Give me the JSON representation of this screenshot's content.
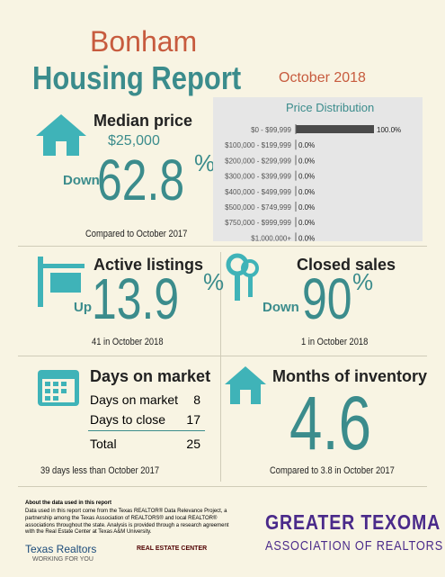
{
  "header": {
    "city": "Bonham",
    "title": "Housing Report",
    "date": "October 2018"
  },
  "median": {
    "label": "Median price",
    "value": "$25,000",
    "direction": "Down",
    "change": "62.8",
    "unit": "%",
    "compare": "Compared to October 2017"
  },
  "price_distribution": {
    "title": "Price Distribution",
    "categories": [
      "$0 - $99,999",
      "$100,000 - $199,999",
      "$200,000 - $299,999",
      "$300,000 - $399,999",
      "$400,000 - $499,999",
      "$500,000 - $749,999",
      "$750,000 - $999,999",
      "$1,000,000+"
    ],
    "values": [
      100,
      0,
      0,
      0,
      0,
      0,
      0,
      0
    ],
    "value_labels": [
      "100.0%",
      "0.0%",
      "0.0%",
      "0.0%",
      "0.0%",
      "0.0%",
      "0.0%",
      "0.0%"
    ],
    "color": "#4a4a4a"
  },
  "active": {
    "label": "Active listings",
    "direction": "Up",
    "change": "13.9",
    "unit": "%",
    "note": "41 in October 2018"
  },
  "closed": {
    "label": "Closed sales",
    "direction": "Down",
    "change": "90",
    "unit": "%",
    "note": "1 in October 2018"
  },
  "days": {
    "title": "Days on market",
    "rows": [
      [
        "Days on market",
        "8"
      ],
      [
        "Days to close",
        "17"
      ]
    ],
    "total": [
      "Total",
      "25"
    ],
    "note": "39 days less than October 2017"
  },
  "inventory": {
    "title": "Months of inventory",
    "value": "4.6",
    "note": "Compared to 3.8 in October 2017"
  },
  "footer": {
    "about_title": "About the data used in this report",
    "about_text": "Data used in this report come from the Texas REALTOR® Data Relevance Project, a partnership among the Texas Association of REALTORS® and local REALTOR® associations throughout the state. Analysis is provided through a research agreement with the Real Estate Center at Texas A&M University.",
    "logo1": "Texas Realtors",
    "logo1_tag": "WORKING FOR YOU",
    "logo2": "REAL ESTATE CENTER",
    "logo3_top": "GREATER TEXOMA",
    "logo3_bottom": "ASSOCIATION OF REALTORS"
  }
}
